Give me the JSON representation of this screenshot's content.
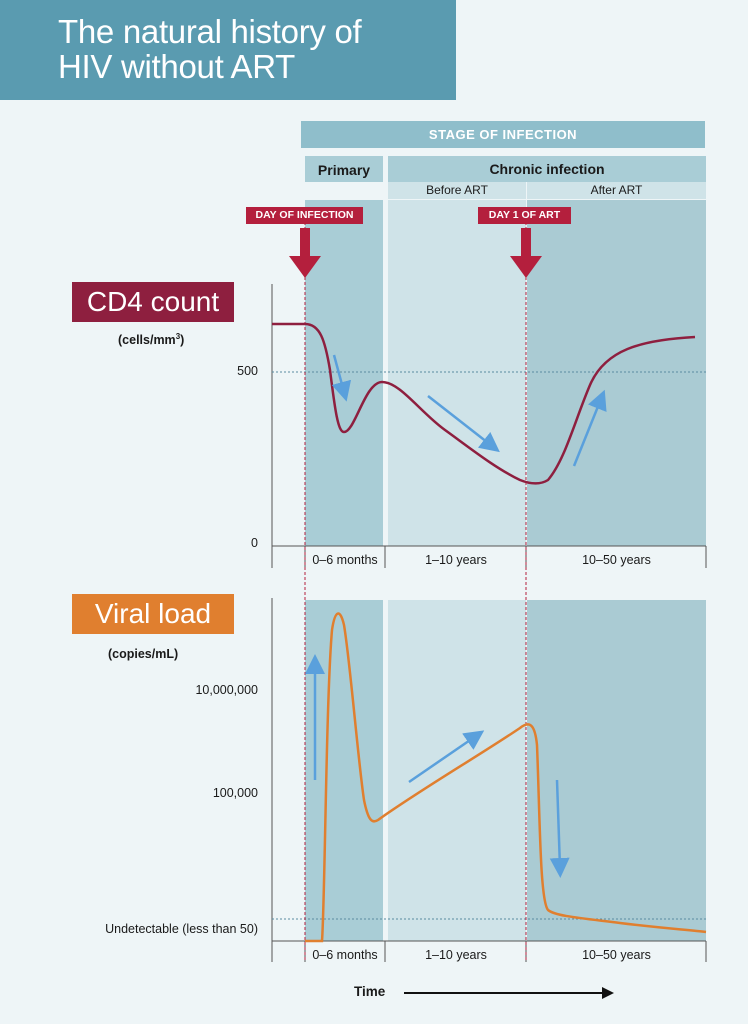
{
  "title": {
    "line1": "The natural history of",
    "line2": "HIV without ART"
  },
  "stages": {
    "header": "STAGE OF INFECTION",
    "primary": "Primary",
    "chronic": "Chronic infection",
    "before_art": "Before ART",
    "after_art": "After ART"
  },
  "events": {
    "day_of_infection": "DAY OF INFECTION",
    "day1_art": "DAY 1 OF ART"
  },
  "cd4": {
    "label": "CD4 count",
    "unit": "cells/mm",
    "unit_sup": "3",
    "ticks": {
      "t500": "500",
      "t0": "0"
    },
    "x_labels": [
      "0–6 months",
      "1–10 years",
      "10–50 years"
    ]
  },
  "viral": {
    "label": "Viral load",
    "unit": "(copies/mL)",
    "ticks": {
      "t1": "10,000,000",
      "t2": "100,000",
      "t3": "Undetectable (less than 50)"
    },
    "x_labels": [
      "0–6 months",
      "1–10 years",
      "10–50 years"
    ]
  },
  "x_axis": {
    "label": "Time"
  },
  "colors": {
    "cd4_curve": "#8e1f3f",
    "viral_curve": "#e07f2f",
    "trend_arrow": "#5aa0dc",
    "event_marker": "#b41f3d",
    "title_bg": "#5a9bb0"
  }
}
